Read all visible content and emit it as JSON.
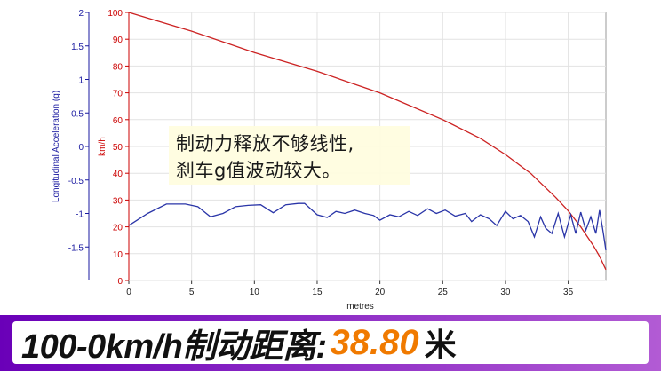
{
  "chart_data": {
    "type": "line",
    "xlabel": "metres",
    "x_ticks": [
      "0",
      "5",
      "10",
      "15",
      "20",
      "25",
      "30",
      "35"
    ],
    "xlim": [
      0,
      38
    ],
    "left_axis": {
      "label": "Longitudinal Acceleration (g)",
      "ticks": [
        "2",
        "1.5",
        "1",
        "0.5",
        "0",
        "-0.5",
        "-1",
        "-1.5"
      ],
      "ylim": [
        -2,
        2
      ],
      "color": "#1a1aa0"
    },
    "right_axis": {
      "label": "km/h",
      "ticks": [
        "100",
        "90",
        "80",
        "70",
        "60",
        "50",
        "40",
        "30",
        "20",
        "10",
        "0"
      ],
      "ylim": [
        0,
        100
      ],
      "color": "#cc0000"
    },
    "grid": true,
    "series": [
      {
        "axis": "right",
        "color": "#cc2222",
        "x": [
          0,
          5,
          10,
          15,
          20,
          25,
          28,
          30,
          32,
          34,
          35,
          36,
          37,
          37.5,
          38
        ],
        "values": [
          100,
          93,
          85,
          78,
          70,
          60,
          53,
          47,
          40,
          31,
          26,
          20,
          13,
          9,
          4
        ]
      },
      {
        "axis": "left",
        "color": "#2a35a8",
        "x": [
          0,
          1.5,
          3,
          4.5,
          5.5,
          6.5,
          7.5,
          8.5,
          9.5,
          10.5,
          11.5,
          12.5,
          13.5,
          14,
          15,
          15.8,
          16.5,
          17.2,
          18,
          18.8,
          19.5,
          20,
          20.8,
          21.5,
          22.3,
          23,
          23.8,
          24.5,
          25.2,
          26,
          26.8,
          27.3,
          28,
          28.7,
          29.3,
          30,
          30.6,
          31.2,
          31.8,
          32.3,
          32.8,
          33.2,
          33.7,
          34.2,
          34.7,
          35.2,
          35.6,
          36,
          36.4,
          36.8,
          37.2,
          37.5,
          37.8,
          38
        ],
        "values": [
          -1.18,
          -1.0,
          -0.86,
          -0.86,
          -0.9,
          -1.05,
          -1.0,
          -0.9,
          -0.88,
          -0.87,
          -0.99,
          -0.87,
          -0.85,
          -0.85,
          -1.02,
          -1.06,
          -0.97,
          -1.0,
          -0.95,
          -1.0,
          -1.03,
          -1.1,
          -1.02,
          -1.05,
          -0.97,
          -1.03,
          -0.93,
          -1.0,
          -0.95,
          -1.04,
          -1.0,
          -1.12,
          -1.02,
          -1.08,
          -1.18,
          -0.97,
          -1.08,
          -1.03,
          -1.12,
          -1.35,
          -1.05,
          -1.22,
          -1.3,
          -1.0,
          -1.35,
          -1.02,
          -1.3,
          -0.98,
          -1.25,
          -1.05,
          -1.3,
          -0.95,
          -1.3,
          -1.55
        ]
      }
    ]
  },
  "annotation": {
    "line1": "制动力释放不够线性,",
    "line2": "刹车g值波动较大。"
  },
  "banner": {
    "label": "100-0km/h制动距离:",
    "value": "38.80",
    "unit": "米"
  }
}
